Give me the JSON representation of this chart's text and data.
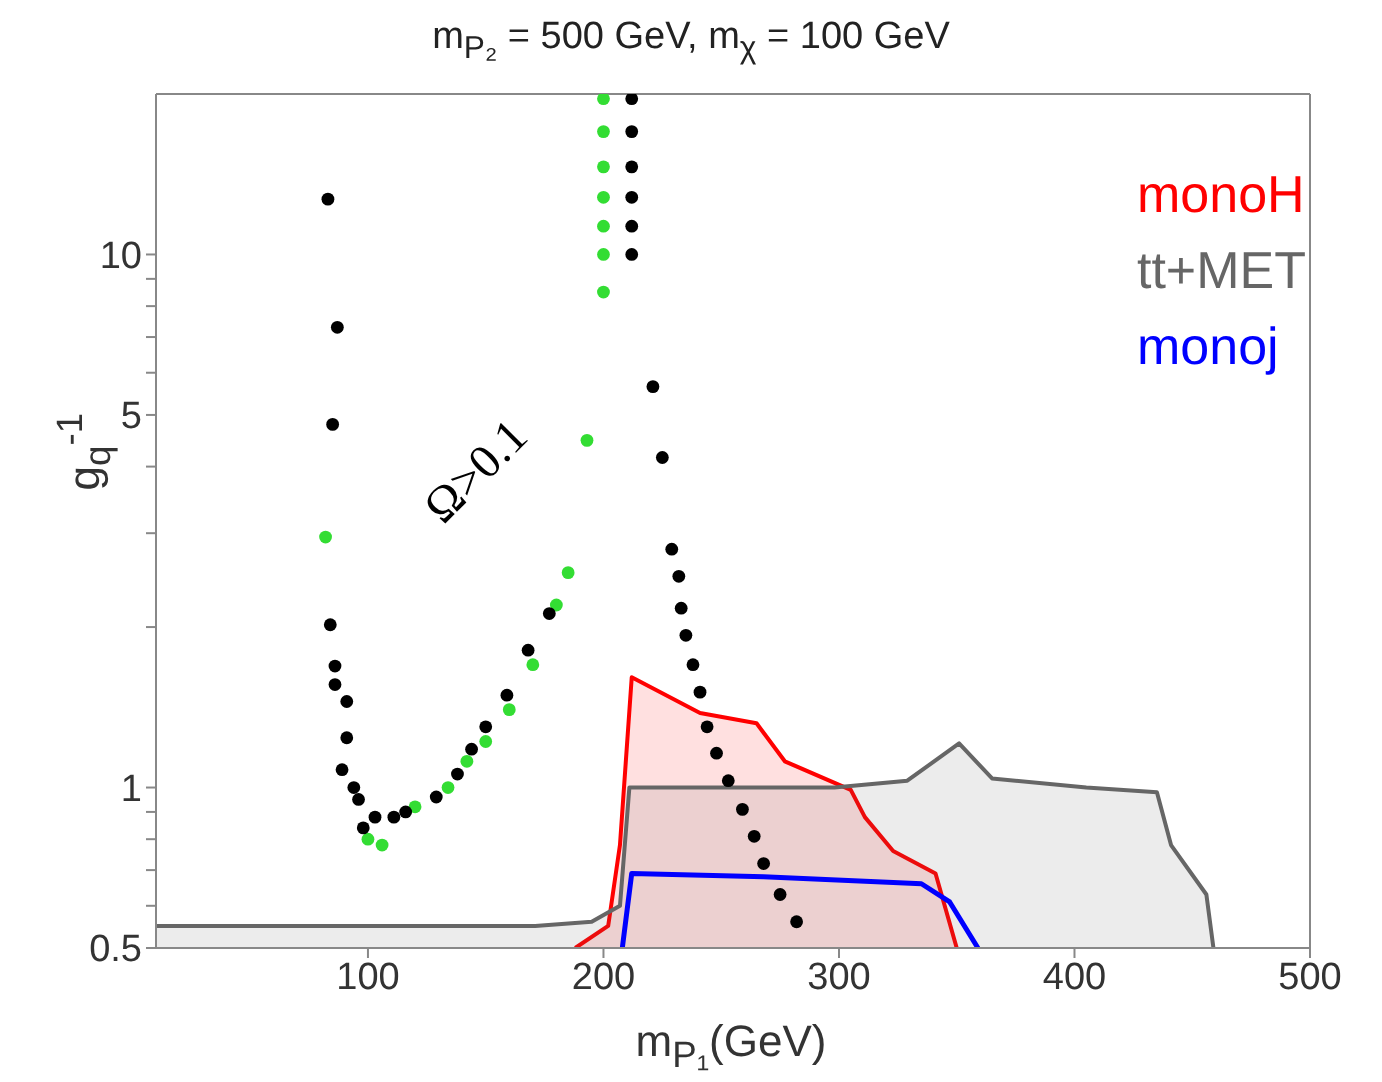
{
  "chart_data": {
    "type": "area",
    "title": "m$_{P₂}$ = 500 GeV, m$_{χ}$ = 100 GeV",
    "xlabel": "m$_{P₁}$(GeV)",
    "ylabel": "g$_{q}$$^{-1}$",
    "annotations": [
      "Ω>0.1"
    ],
    "log": "y",
    "legend": "top right",
    "xlim": [
      10,
      500
    ],
    "xticks": [
      100,
      200,
      300,
      400,
      500
    ],
    "ylim": [
      0.5,
      20
    ],
    "yticks": [
      0.5,
      {
        "value": 0.6,
        "label": null
      },
      {
        "value": 0.7,
        "label": null
      },
      {
        "value": 0.8,
        "label": null
      },
      {
        "value": 0.9,
        "label": null
      },
      1,
      {
        "value": 2,
        "label": null
      },
      {
        "value": 3,
        "label": null
      },
      {
        "value": 4,
        "label": null
      },
      5,
      {
        "value": 6,
        "label": null
      },
      {
        "value": 7,
        "label": null
      },
      {
        "value": 8,
        "label": null
      },
      {
        "value": 9,
        "label": null
      },
      10
    ],
    "grid": false,
    "series": [
      {
        "name": "monoH",
        "type": "area",
        "color": "#ff0000",
        "x": [
          188,
          202,
          207,
          212,
          241,
          265,
          277,
          305,
          311,
          323,
          341,
          350
        ],
        "values": [
          0.5,
          0.55,
          0.78,
          1.61,
          1.38,
          1.32,
          1.12,
          0.99,
          0.88,
          0.76,
          0.69,
          0.5
        ]
      },
      {
        "name": "tt+MET",
        "type": "area",
        "color": "#666666",
        "x": [
          10,
          50,
          100,
          150,
          171,
          195,
          207,
          211,
          250,
          298,
          329,
          351,
          365,
          405,
          435,
          441,
          456,
          459
        ],
        "values": [
          0.55,
          0.55,
          0.55,
          0.55,
          0.55,
          0.56,
          0.6,
          1.0,
          1.0,
          1.0,
          1.03,
          1.21,
          1.04,
          1.0,
          0.98,
          0.78,
          0.63,
          0.5
        ]
      },
      {
        "name": "monoj",
        "type": "line",
        "color": "#0000ff",
        "x": [
          208,
          212,
          268,
          335,
          347,
          359
        ],
        "values": [
          0.5,
          0.69,
          0.68,
          0.66,
          0.61,
          0.5
        ]
      },
      {
        "type": "scatter",
        "color": "#33dd33",
        "x": [
          82,
          100,
          106,
          120,
          134,
          142,
          150,
          160,
          170,
          180,
          185,
          193,
          200,
          200,
          200,
          200,
          200,
          200,
          200
        ],
        "values": [
          2.95,
          0.8,
          0.78,
          0.92,
          1.0,
          1.12,
          1.22,
          1.4,
          1.7,
          2.2,
          2.53,
          4.48,
          8.5,
          10,
          11.3,
          12.8,
          14.6,
          17,
          19.6
        ]
      },
      {
        "type": "scatter",
        "color": "#000000",
        "x": [
          83,
          87,
          85,
          84,
          86,
          86,
          91,
          91,
          89,
          94,
          96,
          98,
          103,
          111,
          116,
          129,
          138,
          144,
          150,
          159,
          168,
          177,
          212,
          212,
          212,
          212,
          212,
          212,
          221,
          225,
          229,
          232,
          233,
          235,
          238,
          241,
          244,
          248,
          253,
          259,
          264,
          268,
          275,
          282
        ],
        "values": [
          12.7,
          7.3,
          4.8,
          2.02,
          1.69,
          1.56,
          1.45,
          1.24,
          1.08,
          1.0,
          0.95,
          0.84,
          0.88,
          0.88,
          0.9,
          0.96,
          1.06,
          1.18,
          1.3,
          1.49,
          1.81,
          2.12,
          10,
          11.3,
          12.8,
          14.6,
          17,
          19.6,
          5.65,
          4.16,
          2.8,
          2.49,
          2.17,
          1.93,
          1.7,
          1.51,
          1.3,
          1.16,
          1.03,
          0.91,
          0.81,
          0.72,
          0.63,
          0.56
        ]
      }
    ]
  }
}
